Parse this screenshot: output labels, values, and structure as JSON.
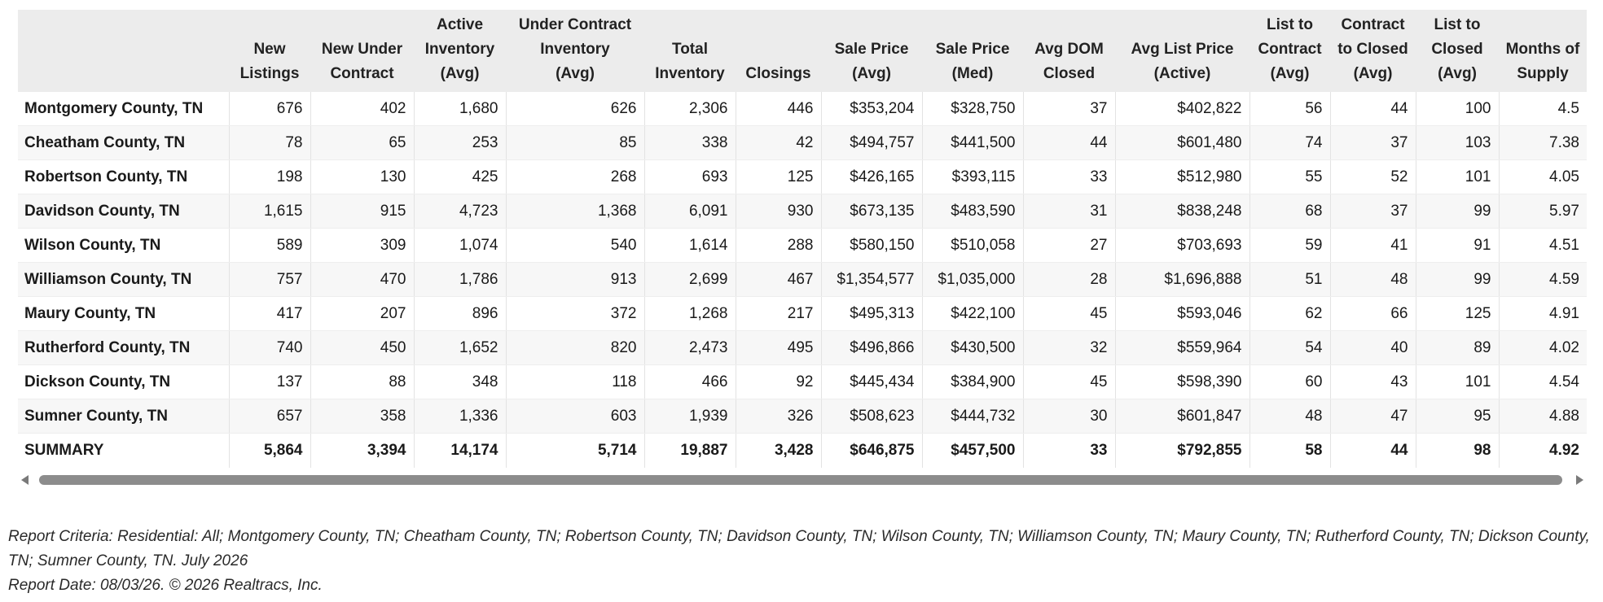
{
  "table": {
    "headers": [
      "",
      [
        "New",
        "Listings"
      ],
      [
        "New Under",
        "Contract"
      ],
      [
        "Active",
        "Inventory",
        "(Avg)"
      ],
      [
        "Under Contract",
        "Inventory",
        "(Avg)"
      ],
      [
        "Total",
        "Inventory"
      ],
      [
        "Closings"
      ],
      [
        "Sale Price",
        "(Avg)"
      ],
      [
        "Sale Price",
        "(Med)"
      ],
      [
        "Avg DOM",
        "Closed"
      ],
      [
        "Avg List Price",
        "(Active)"
      ],
      [
        "List to",
        "Contract",
        "(Avg)"
      ],
      [
        "Contract",
        "to Closed",
        "(Avg)"
      ],
      [
        "List to",
        "Closed",
        "(Avg)"
      ],
      [
        "Months of",
        "Supply"
      ]
    ],
    "rows": [
      [
        "Montgomery County, TN",
        "676",
        "402",
        "1,680",
        "626",
        "2,306",
        "446",
        "$353,204",
        "$328,750",
        "37",
        "$402,822",
        "56",
        "44",
        "100",
        "4.5"
      ],
      [
        "Cheatham County, TN",
        "78",
        "65",
        "253",
        "85",
        "338",
        "42",
        "$494,757",
        "$441,500",
        "44",
        "$601,480",
        "74",
        "37",
        "103",
        "7.38"
      ],
      [
        "Robertson County, TN",
        "198",
        "130",
        "425",
        "268",
        "693",
        "125",
        "$426,165",
        "$393,115",
        "33",
        "$512,980",
        "55",
        "52",
        "101",
        "4.05"
      ],
      [
        "Davidson County, TN",
        "1,615",
        "915",
        "4,723",
        "1,368",
        "6,091",
        "930",
        "$673,135",
        "$483,590",
        "31",
        "$838,248",
        "68",
        "37",
        "99",
        "5.97"
      ],
      [
        "Wilson County, TN",
        "589",
        "309",
        "1,074",
        "540",
        "1,614",
        "288",
        "$580,150",
        "$510,058",
        "27",
        "$703,693",
        "59",
        "41",
        "91",
        "4.51"
      ],
      [
        "Williamson County, TN",
        "757",
        "470",
        "1,786",
        "913",
        "2,699",
        "467",
        "$1,354,577",
        "$1,035,000",
        "28",
        "$1,696,888",
        "51",
        "48",
        "99",
        "4.59"
      ],
      [
        "Maury County, TN",
        "417",
        "207",
        "896",
        "372",
        "1,268",
        "217",
        "$495,313",
        "$422,100",
        "45",
        "$593,046",
        "62",
        "66",
        "125",
        "4.91"
      ],
      [
        "Rutherford County, TN",
        "740",
        "450",
        "1,652",
        "820",
        "2,473",
        "495",
        "$496,866",
        "$430,500",
        "32",
        "$559,964",
        "54",
        "40",
        "89",
        "4.02"
      ],
      [
        "Dickson County, TN",
        "137",
        "88",
        "348",
        "118",
        "466",
        "92",
        "$445,434",
        "$384,900",
        "45",
        "$598,390",
        "60",
        "43",
        "101",
        "4.54"
      ],
      [
        "Sumner County, TN",
        "657",
        "358",
        "1,336",
        "603",
        "1,939",
        "326",
        "$508,623",
        "$444,732",
        "30",
        "$601,847",
        "48",
        "47",
        "95",
        "4.88"
      ]
    ],
    "summary": [
      "SUMMARY",
      "5,864",
      "3,394",
      "14,174",
      "5,714",
      "19,887",
      "3,428",
      "$646,875",
      "$457,500",
      "33",
      "$792,855",
      "58",
      "44",
      "98",
      "4.92"
    ]
  },
  "footer": {
    "criteria": "Report Criteria: Residential: All; Montgomery County, TN; Cheatham County, TN; Robertson County, TN; Davidson County, TN; Wilson County, TN; Williamson County, TN; Maury County, TN; Rutherford County, TN; Dickson County, TN; Sumner County, TN. July 2026",
    "report_date": "Report Date: 08/03/26. © 2026 Realtracs, Inc."
  },
  "colors": {
    "header_bg": "#ececec",
    "alt_row_bg": "#f7f7f7",
    "scroll_thumb": "#8c8c8c"
  },
  "icons": {
    "scroll_left": "triangle-left-icon",
    "scroll_right": "triangle-right-icon"
  }
}
